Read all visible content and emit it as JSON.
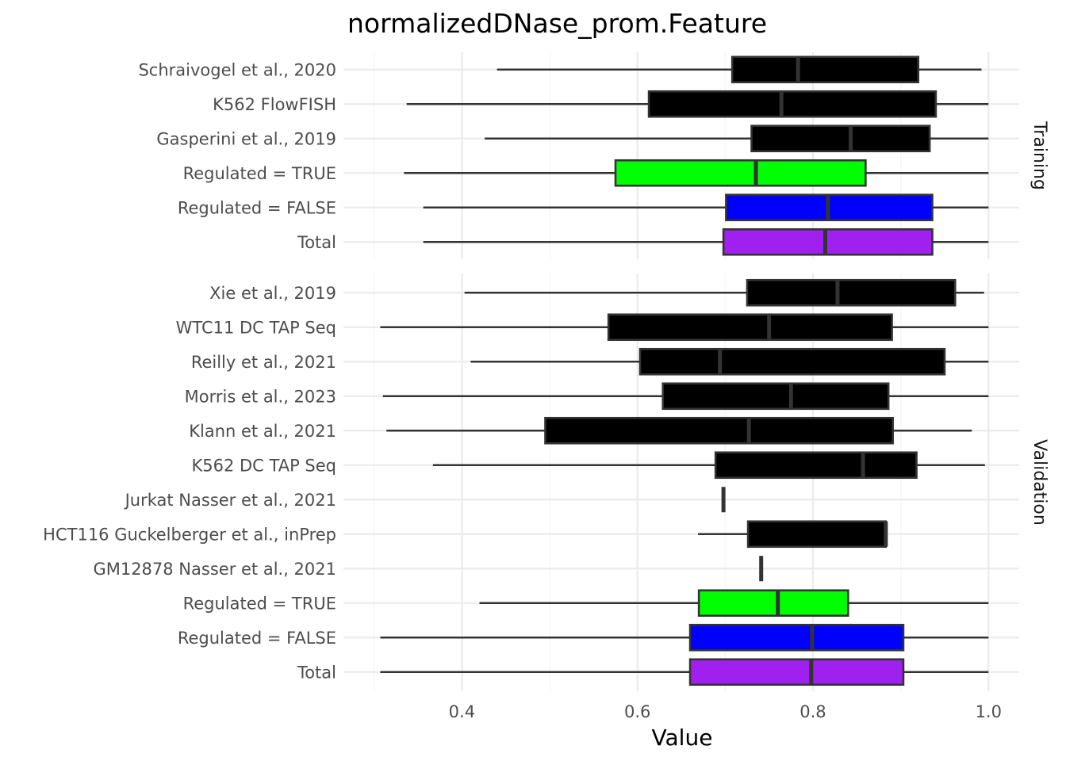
{
  "chart_data": {
    "type": "boxplot",
    "title": "normalizedDNase_prom.Feature",
    "xlabel": "Value",
    "xlim": [
      0.265,
      1.035
    ],
    "xticks": [
      0.4,
      0.6,
      0.8,
      1.0
    ],
    "xtick_labels": [
      "0.4",
      "0.6",
      "0.8",
      "1.0"
    ],
    "grid": true,
    "colors": {
      "Dataset": "#000000",
      "Regulated = TRUE": "#00ff00",
      "Regulated = FALSE": "#0000ff",
      "Total": "#a020f0",
      "outline": "#333333",
      "grid_major": "#ebebeb",
      "grid_minor": "#f5f5f5"
    },
    "panels": [
      {
        "strip": "Training",
        "rows": [
          {
            "label": "Schraivogel et al., 2020",
            "group": "Dataset",
            "min": 0.44,
            "q1": 0.708,
            "median": 0.783,
            "q3": 0.92,
            "max": 0.992
          },
          {
            "label": "K562 FlowFISH",
            "group": "Dataset",
            "min": 0.337,
            "q1": 0.613,
            "median": 0.764,
            "q3": 0.94,
            "max": 1.0
          },
          {
            "label": "Gasperini et al., 2019",
            "group": "Dataset",
            "min": 0.426,
            "q1": 0.73,
            "median": 0.843,
            "q3": 0.933,
            "max": 1.0
          },
          {
            "label": "Regulated = TRUE",
            "group": "Regulated = TRUE",
            "min": 0.334,
            "q1": 0.575,
            "median": 0.735,
            "q3": 0.86,
            "max": 1.0
          },
          {
            "label": "Regulated = FALSE",
            "group": "Regulated = FALSE",
            "min": 0.356,
            "q1": 0.701,
            "median": 0.817,
            "q3": 0.936,
            "max": 1.0
          },
          {
            "label": "Total",
            "group": "Total",
            "min": 0.356,
            "q1": 0.698,
            "median": 0.814,
            "q3": 0.936,
            "max": 1.0
          }
        ]
      },
      {
        "strip": "Validation",
        "rows": [
          {
            "label": "Xie et al., 2019",
            "group": "Dataset",
            "min": 0.403,
            "q1": 0.725,
            "median": 0.828,
            "q3": 0.962,
            "max": 0.995
          },
          {
            "label": "WTC11 DC TAP Seq",
            "group": "Dataset",
            "min": 0.307,
            "q1": 0.567,
            "median": 0.75,
            "q3": 0.89,
            "max": 1.0
          },
          {
            "label": "Reilly et al., 2021",
            "group": "Dataset",
            "min": 0.41,
            "q1": 0.603,
            "median": 0.694,
            "q3": 0.95,
            "max": 1.0
          },
          {
            "label": "Morris et al., 2023",
            "group": "Dataset",
            "min": 0.31,
            "q1": 0.629,
            "median": 0.775,
            "q3": 0.886,
            "max": 1.0
          },
          {
            "label": "Klann et al., 2021",
            "group": "Dataset",
            "min": 0.314,
            "q1": 0.495,
            "median": 0.727,
            "q3": 0.891,
            "max": 0.981
          },
          {
            "label": "K562 DC TAP Seq",
            "group": "Dataset",
            "min": 0.367,
            "q1": 0.689,
            "median": 0.857,
            "q3": 0.918,
            "max": 0.996
          },
          {
            "label": "Jurkat Nasser et al., 2021",
            "group": "Dataset",
            "min": 0.698,
            "q1": 0.698,
            "median": 0.698,
            "q3": 0.698,
            "max": 0.698
          },
          {
            "label": "HCT116 Guckelberger et al., inPrep",
            "group": "Dataset",
            "min": 0.669,
            "q1": 0.726,
            "median": 0.883,
            "q3": 0.883,
            "max": 0.883
          },
          {
            "label": "GM12878 Nasser et al., 2021",
            "group": "Dataset",
            "min": 0.741,
            "q1": 0.741,
            "median": 0.741,
            "q3": 0.741,
            "max": 0.741
          },
          {
            "label": "Regulated = TRUE",
            "group": "Regulated = TRUE",
            "min": 0.42,
            "q1": 0.67,
            "median": 0.76,
            "q3": 0.84,
            "max": 1.0
          },
          {
            "label": "Regulated = FALSE",
            "group": "Regulated = FALSE",
            "min": 0.307,
            "q1": 0.66,
            "median": 0.799,
            "q3": 0.903,
            "max": 1.0
          },
          {
            "label": "Total",
            "group": "Total",
            "min": 0.307,
            "q1": 0.66,
            "median": 0.798,
            "q3": 0.903,
            "max": 1.0
          }
        ]
      }
    ]
  }
}
